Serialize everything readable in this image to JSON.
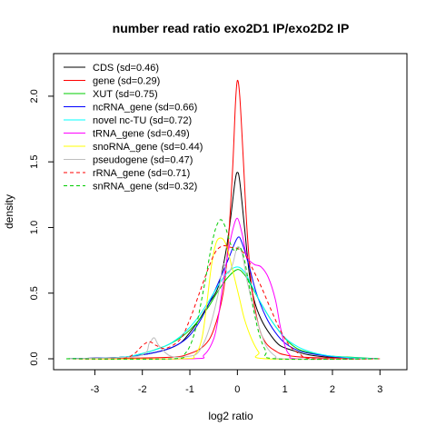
{
  "chart_data": {
    "type": "line",
    "title": "number read ratio exo2D1 IP/exo2D2 IP",
    "xlabel": "log2 ratio",
    "ylabel": "density",
    "xlim": [
      -3.6,
      3.3
    ],
    "ylim": [
      0,
      2.2
    ],
    "x_ticks": [
      -3,
      -2,
      -1,
      0,
      1,
      2,
      3
    ],
    "y_ticks": [
      0.0,
      0.5,
      1.0,
      1.5,
      2.0
    ],
    "x_tick_labels": [
      "-3",
      "-2",
      "-1",
      "0",
      "1",
      "2",
      "3"
    ],
    "y_tick_labels": [
      "0.0",
      "0.5",
      "1.0",
      "1.5",
      "2.0"
    ],
    "grid": false,
    "legend_position": "top-left",
    "series": [
      {
        "name": "CDS (sd=0.46)",
        "color": "#000000",
        "dash": "solid",
        "points": [
          [
            -3.6,
            0
          ],
          [
            -2.5,
            0.01
          ],
          [
            -2.0,
            0.03
          ],
          [
            -1.5,
            0.07
          ],
          [
            -1.2,
            0.12
          ],
          [
            -1.0,
            0.2
          ],
          [
            -0.8,
            0.3
          ],
          [
            -0.6,
            0.42
          ],
          [
            -0.4,
            0.55
          ],
          [
            -0.25,
            0.8
          ],
          [
            -0.15,
            1.05
          ],
          [
            -0.05,
            1.35
          ],
          [
            0.0,
            1.42
          ],
          [
            0.05,
            1.35
          ],
          [
            0.15,
            1.0
          ],
          [
            0.25,
            0.65
          ],
          [
            0.35,
            0.45
          ],
          [
            0.5,
            0.3
          ],
          [
            0.7,
            0.18
          ],
          [
            0.9,
            0.1
          ],
          [
            1.2,
            0.06
          ],
          [
            1.5,
            0.03
          ],
          [
            2.0,
            0.01
          ],
          [
            3.0,
            0
          ]
        ]
      },
      {
        "name": "gene (sd=0.29)",
        "color": "#ff0000",
        "dash": "solid",
        "points": [
          [
            -3.6,
            0
          ],
          [
            -1.5,
            0.01
          ],
          [
            -1.0,
            0.04
          ],
          [
            -0.7,
            0.1
          ],
          [
            -0.5,
            0.22
          ],
          [
            -0.3,
            0.5
          ],
          [
            -0.2,
            0.85
          ],
          [
            -0.1,
            1.45
          ],
          [
            -0.04,
            1.95
          ],
          [
            0.0,
            2.12
          ],
          [
            0.05,
            2.0
          ],
          [
            0.12,
            1.55
          ],
          [
            0.2,
            1.0
          ],
          [
            0.3,
            0.55
          ],
          [
            0.45,
            0.25
          ],
          [
            0.6,
            0.12
          ],
          [
            0.8,
            0.06
          ],
          [
            1.0,
            0.03
          ],
          [
            1.5,
            0.01
          ],
          [
            3.0,
            0
          ]
        ]
      },
      {
        "name": "XUT (sd=0.75)",
        "color": "#00cc00",
        "dash": "solid",
        "points": [
          [
            -3.6,
            0
          ],
          [
            -2.5,
            0.01
          ],
          [
            -2.0,
            0.04
          ],
          [
            -1.5,
            0.1
          ],
          [
            -1.2,
            0.16
          ],
          [
            -1.0,
            0.22
          ],
          [
            -0.8,
            0.3
          ],
          [
            -0.6,
            0.4
          ],
          [
            -0.4,
            0.52
          ],
          [
            -0.2,
            0.62
          ],
          [
            0.0,
            0.68
          ],
          [
            0.15,
            0.64
          ],
          [
            0.3,
            0.55
          ],
          [
            0.5,
            0.42
          ],
          [
            0.7,
            0.3
          ],
          [
            0.9,
            0.2
          ],
          [
            1.1,
            0.12
          ],
          [
            1.3,
            0.07
          ],
          [
            1.6,
            0.04
          ],
          [
            2.0,
            0.02
          ],
          [
            3.0,
            0
          ]
        ]
      },
      {
        "name": "ncRNA_gene (sd=0.66)",
        "color": "#0000ff",
        "dash": "solid",
        "points": [
          [
            -3.6,
            0
          ],
          [
            -2.5,
            0.01
          ],
          [
            -2.0,
            0.03
          ],
          [
            -1.5,
            0.07
          ],
          [
            -1.2,
            0.12
          ],
          [
            -1.0,
            0.18
          ],
          [
            -0.8,
            0.28
          ],
          [
            -0.6,
            0.42
          ],
          [
            -0.4,
            0.58
          ],
          [
            -0.2,
            0.75
          ],
          [
            0.0,
            0.92
          ],
          [
            0.1,
            0.88
          ],
          [
            0.25,
            0.7
          ],
          [
            0.4,
            0.5
          ],
          [
            0.6,
            0.32
          ],
          [
            0.8,
            0.2
          ],
          [
            1.0,
            0.12
          ],
          [
            1.3,
            0.06
          ],
          [
            1.7,
            0.03
          ],
          [
            2.2,
            0.01
          ],
          [
            3.0,
            0
          ]
        ]
      },
      {
        "name": "novel nc-TU (sd=0.72)",
        "color": "#00ffff",
        "dash": "solid",
        "points": [
          [
            -3.6,
            0
          ],
          [
            -2.5,
            0.01
          ],
          [
            -2.0,
            0.04
          ],
          [
            -1.5,
            0.1
          ],
          [
            -1.2,
            0.17
          ],
          [
            -1.0,
            0.24
          ],
          [
            -0.8,
            0.33
          ],
          [
            -0.6,
            0.44
          ],
          [
            -0.4,
            0.56
          ],
          [
            -0.2,
            0.66
          ],
          [
            0.0,
            0.7
          ],
          [
            0.15,
            0.66
          ],
          [
            0.3,
            0.56
          ],
          [
            0.5,
            0.42
          ],
          [
            0.7,
            0.3
          ],
          [
            0.9,
            0.2
          ],
          [
            1.1,
            0.13
          ],
          [
            1.4,
            0.07
          ],
          [
            1.8,
            0.03
          ],
          [
            2.3,
            0.01
          ],
          [
            3.0,
            0
          ]
        ]
      },
      {
        "name": "tRNA_gene (sd=0.49)",
        "color": "#ff00ff",
        "dash": "solid",
        "points": [
          [
            -3.6,
            0
          ],
          [
            -1.0,
            0
          ],
          [
            -0.7,
            0.03
          ],
          [
            -0.5,
            0.15
          ],
          [
            -0.4,
            0.32
          ],
          [
            -0.3,
            0.58
          ],
          [
            -0.2,
            0.8
          ],
          [
            -0.1,
            0.98
          ],
          [
            0.0,
            1.07
          ],
          [
            0.1,
            0.95
          ],
          [
            0.2,
            0.78
          ],
          [
            0.35,
            0.72
          ],
          [
            0.5,
            0.7
          ],
          [
            0.65,
            0.62
          ],
          [
            0.8,
            0.45
          ],
          [
            0.9,
            0.25
          ],
          [
            1.0,
            0.1
          ],
          [
            1.1,
            0.03
          ],
          [
            1.3,
            0
          ],
          [
            3.0,
            0
          ]
        ]
      },
      {
        "name": "snoRNA_gene (sd=0.44)",
        "color": "#ffff00",
        "dash": "solid",
        "points": [
          [
            -3.6,
            0
          ],
          [
            -1.2,
            0
          ],
          [
            -0.9,
            0.03
          ],
          [
            -0.75,
            0.15
          ],
          [
            -0.65,
            0.4
          ],
          [
            -0.55,
            0.7
          ],
          [
            -0.45,
            0.88
          ],
          [
            -0.35,
            0.92
          ],
          [
            -0.25,
            0.88
          ],
          [
            -0.15,
            0.75
          ],
          [
            -0.05,
            0.6
          ],
          [
            0.05,
            0.45
          ],
          [
            0.15,
            0.3
          ],
          [
            0.3,
            0.15
          ],
          [
            0.45,
            0.05
          ],
          [
            0.6,
            0
          ],
          [
            3.0,
            0
          ]
        ]
      },
      {
        "name": "pseudogene (sd=0.47)",
        "color": "#bebebe",
        "dash": "solid",
        "points": [
          [
            -3.6,
            0
          ],
          [
            -2.1,
            0.02
          ],
          [
            -1.85,
            0.12
          ],
          [
            -1.75,
            0.16
          ],
          [
            -1.65,
            0.1
          ],
          [
            -1.4,
            0.02
          ],
          [
            -1.0,
            0.02
          ],
          [
            -0.8,
            0.06
          ],
          [
            -0.6,
            0.22
          ],
          [
            -0.4,
            0.5
          ],
          [
            -0.3,
            0.72
          ],
          [
            -0.2,
            0.65
          ],
          [
            -0.1,
            0.72
          ],
          [
            0.0,
            0.85
          ],
          [
            0.1,
            0.8
          ],
          [
            0.2,
            0.6
          ],
          [
            0.3,
            0.45
          ],
          [
            0.45,
            0.25
          ],
          [
            0.6,
            0.1
          ],
          [
            0.8,
            0.02
          ],
          [
            1.0,
            0
          ],
          [
            3.0,
            0
          ]
        ]
      },
      {
        "name": "rRNA_gene (sd=0.71)",
        "color": "#ff0000",
        "dash": "dashed",
        "points": [
          [
            -3.6,
            0
          ],
          [
            -2.5,
            0
          ],
          [
            -2.2,
            0.03
          ],
          [
            -2.0,
            0.1
          ],
          [
            -1.85,
            0.13
          ],
          [
            -1.7,
            0.1
          ],
          [
            -1.5,
            0.08
          ],
          [
            -1.2,
            0.15
          ],
          [
            -1.0,
            0.3
          ],
          [
            -0.8,
            0.5
          ],
          [
            -0.6,
            0.7
          ],
          [
            -0.45,
            0.82
          ],
          [
            -0.3,
            0.86
          ],
          [
            -0.15,
            0.85
          ],
          [
            0.0,
            0.84
          ],
          [
            0.15,
            0.8
          ],
          [
            0.3,
            0.7
          ],
          [
            0.5,
            0.55
          ],
          [
            0.7,
            0.38
          ],
          [
            0.9,
            0.22
          ],
          [
            1.1,
            0.1
          ],
          [
            1.3,
            0.04
          ],
          [
            1.6,
            0
          ],
          [
            3.0,
            0
          ]
        ]
      },
      {
        "name": "snRNA_gene (sd=0.32)",
        "color": "#00cc00",
        "dash": "dashed",
        "points": [
          [
            -3.6,
            0
          ],
          [
            -1.4,
            0
          ],
          [
            -1.1,
            0.04
          ],
          [
            -0.9,
            0.2
          ],
          [
            -0.7,
            0.55
          ],
          [
            -0.55,
            0.85
          ],
          [
            -0.45,
            1.0
          ],
          [
            -0.35,
            1.06
          ],
          [
            -0.25,
            1.0
          ],
          [
            -0.15,
            0.88
          ],
          [
            -0.05,
            0.82
          ],
          [
            0.05,
            0.85
          ],
          [
            0.15,
            0.75
          ],
          [
            0.3,
            0.45
          ],
          [
            0.45,
            0.2
          ],
          [
            0.6,
            0.06
          ],
          [
            0.8,
            0
          ],
          [
            3.0,
            0
          ]
        ]
      }
    ]
  }
}
